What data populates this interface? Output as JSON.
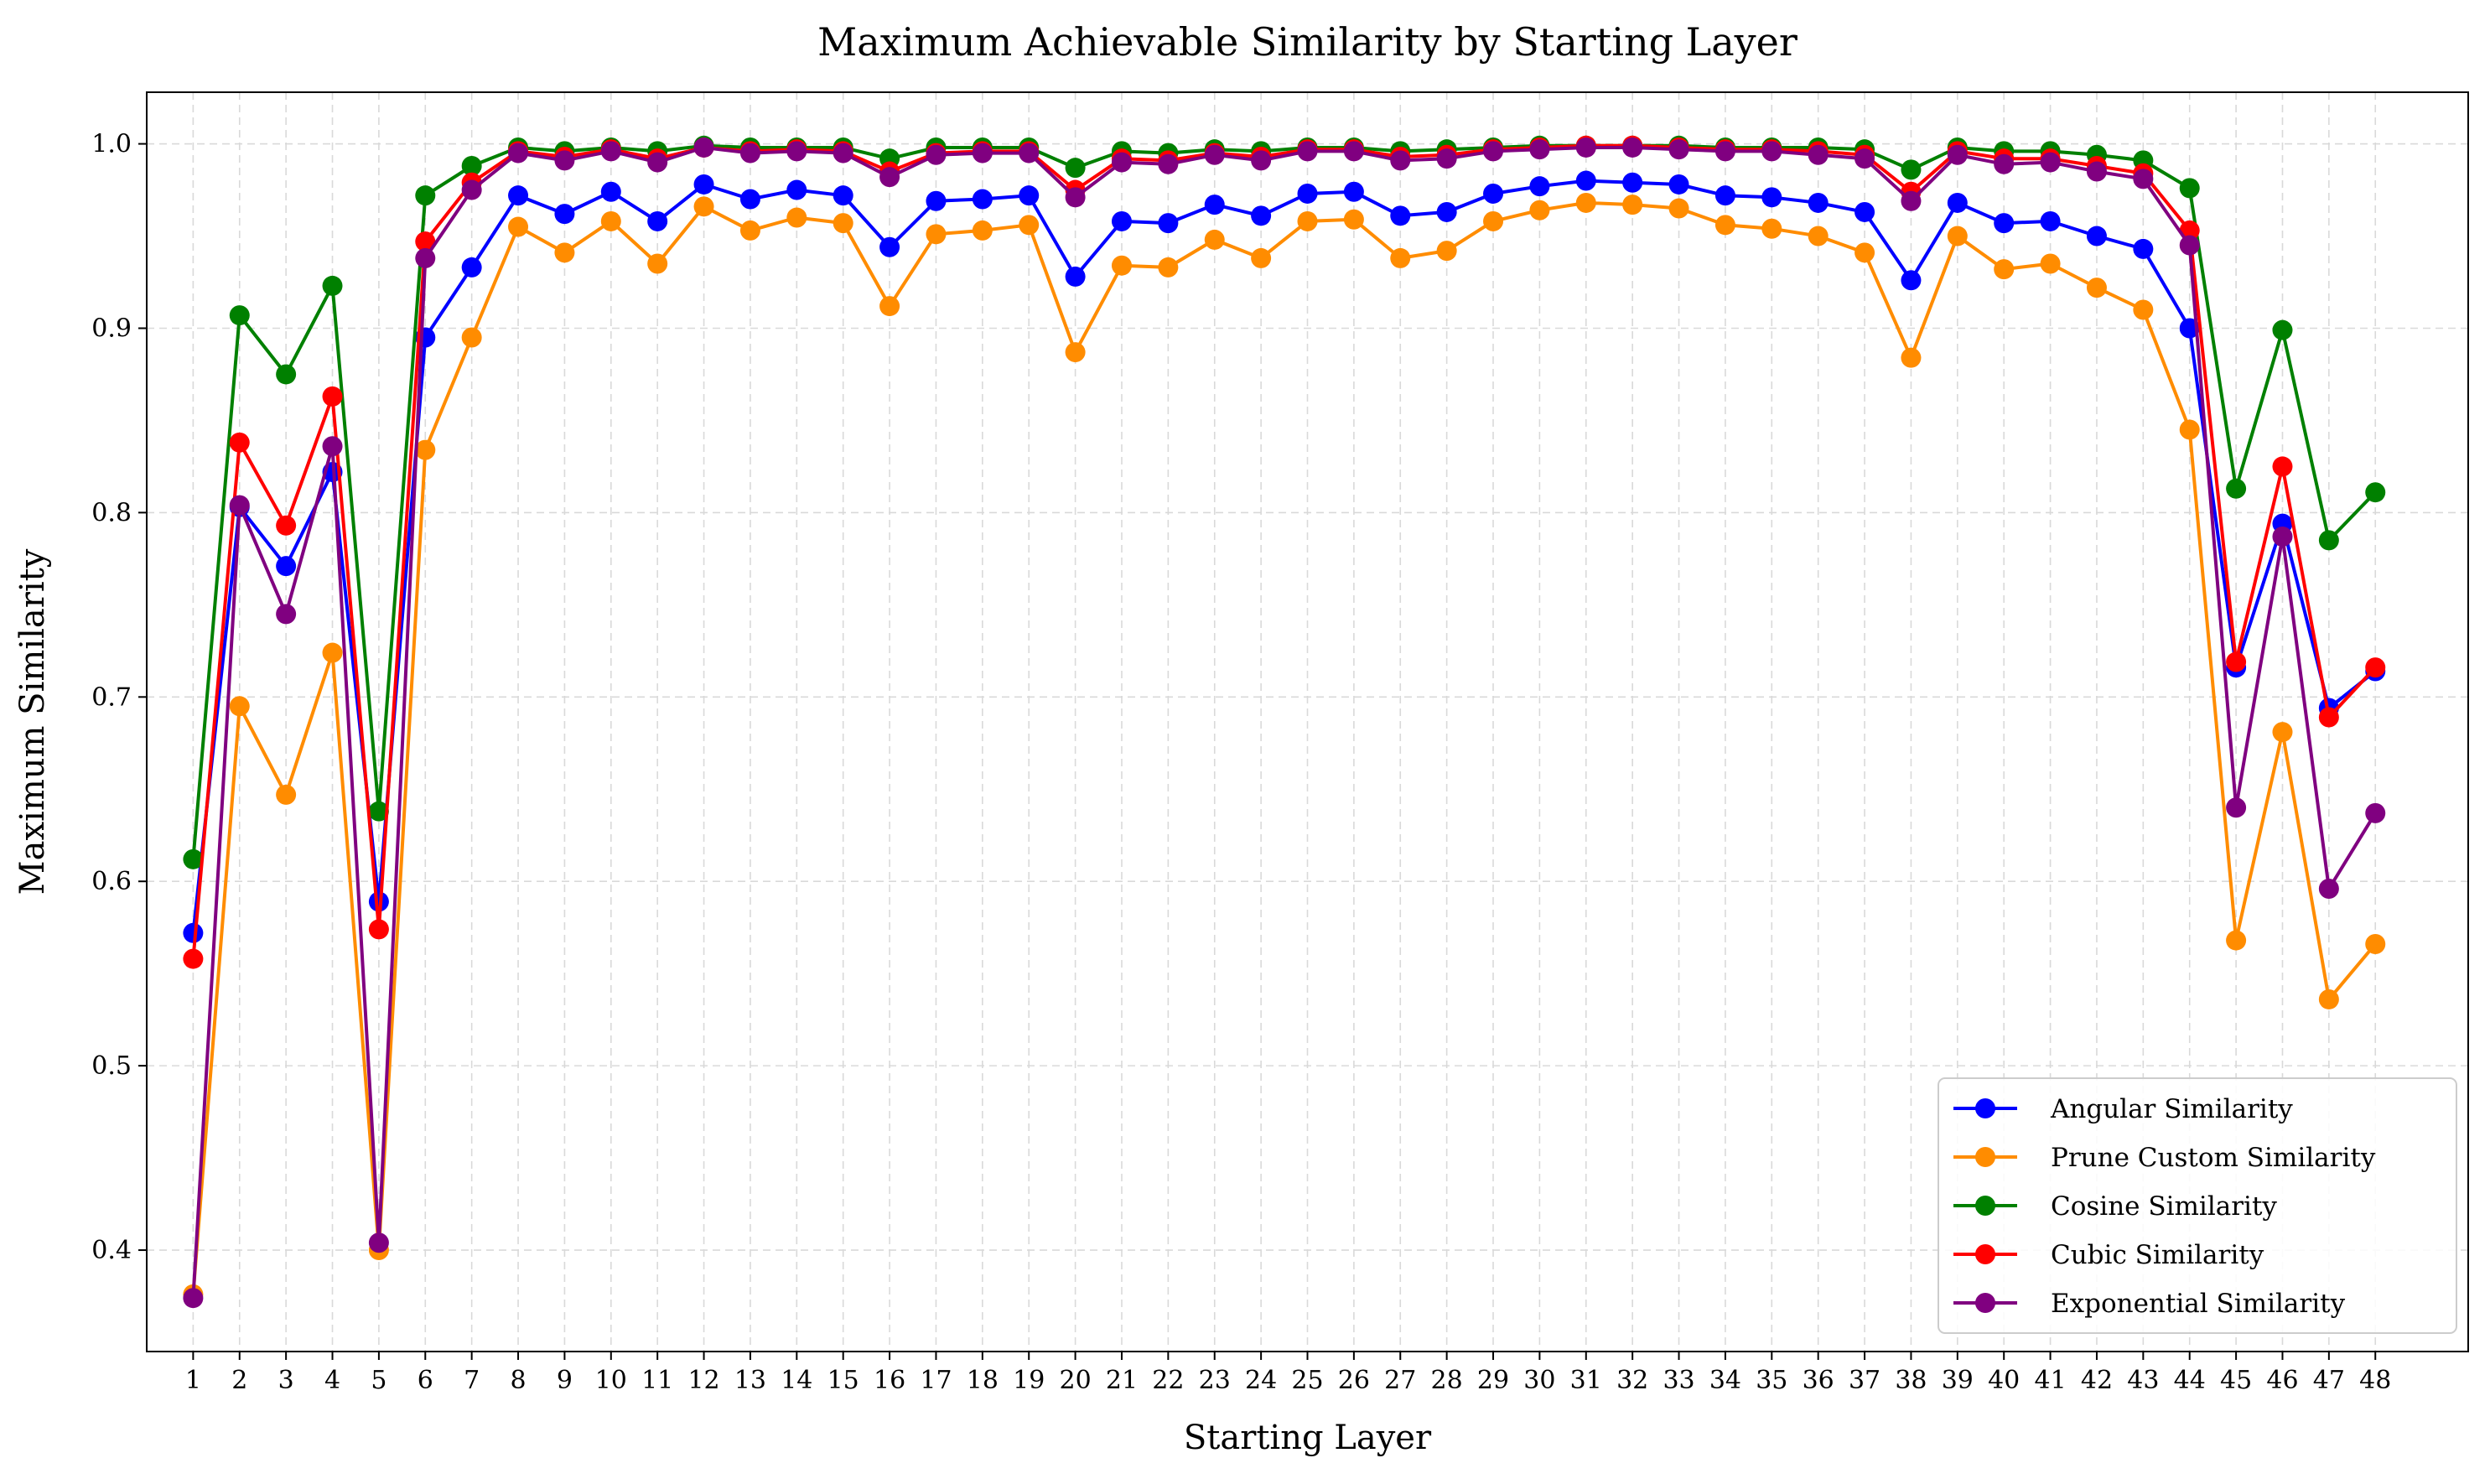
{
  "chart_data": {
    "type": "line",
    "title": "Maximum Achievable Similarity by Starting Layer",
    "xlabel": "Starting Layer",
    "ylabel": "Maximum Similarity",
    "x": [
      1,
      2,
      3,
      4,
      5,
      6,
      7,
      8,
      9,
      10,
      11,
      12,
      13,
      14,
      15,
      16,
      17,
      18,
      19,
      20,
      21,
      22,
      23,
      24,
      25,
      26,
      27,
      28,
      29,
      30,
      31,
      32,
      33,
      34,
      35,
      36,
      37,
      38,
      39,
      40,
      41,
      42,
      43,
      44,
      45,
      46,
      47,
      48
    ],
    "xlim": [
      0.0,
      50.0
    ],
    "ylim": [
      0.345,
      1.028
    ],
    "yticks": [
      0.4,
      0.5,
      0.6,
      0.7,
      0.8,
      0.9,
      1.0
    ],
    "ytick_labels": [
      "0.4",
      "0.5",
      "0.6",
      "0.7",
      "0.8",
      "0.9",
      "1.0"
    ],
    "grid": true,
    "legend_position": "bottom-right",
    "series": [
      {
        "name": "Angular Similarity",
        "color": "#0000ff",
        "values": [
          0.572,
          0.803,
          0.771,
          0.822,
          0.589,
          0.895,
          0.933,
          0.972,
          0.962,
          0.974,
          0.958,
          0.978,
          0.97,
          0.975,
          0.972,
          0.944,
          0.969,
          0.97,
          0.972,
          0.928,
          0.958,
          0.957,
          0.967,
          0.961,
          0.973,
          0.974,
          0.961,
          0.963,
          0.973,
          0.977,
          0.98,
          0.979,
          0.978,
          0.972,
          0.971,
          0.968,
          0.963,
          0.926,
          0.968,
          0.957,
          0.958,
          0.95,
          0.943,
          0.9,
          0.716,
          0.794,
          0.694,
          0.714
        ]
      },
      {
        "name": "Prune Custom Similarity",
        "color": "#ff8c00",
        "values": [
          0.376,
          0.695,
          0.647,
          0.724,
          0.4,
          0.834,
          0.895,
          0.955,
          0.941,
          0.958,
          0.935,
          0.966,
          0.953,
          0.96,
          0.957,
          0.912,
          0.951,
          0.953,
          0.956,
          0.887,
          0.934,
          0.933,
          0.948,
          0.938,
          0.958,
          0.959,
          0.938,
          0.942,
          0.958,
          0.964,
          0.968,
          0.967,
          0.965,
          0.956,
          0.954,
          0.95,
          0.941,
          0.884,
          0.95,
          0.932,
          0.935,
          0.922,
          0.91,
          0.845,
          0.568,
          0.681,
          0.536,
          0.566
        ]
      },
      {
        "name": "Cosine Similarity",
        "color": "#008000",
        "values": [
          0.612,
          0.907,
          0.875,
          0.923,
          0.638,
          0.972,
          0.988,
          0.998,
          0.996,
          0.998,
          0.996,
          0.999,
          0.998,
          0.998,
          0.998,
          0.992,
          0.998,
          0.998,
          0.998,
          0.987,
          0.996,
          0.995,
          0.997,
          0.996,
          0.998,
          0.998,
          0.996,
          0.997,
          0.998,
          0.999,
          0.999,
          0.999,
          0.999,
          0.998,
          0.998,
          0.998,
          0.997,
          0.986,
          0.998,
          0.996,
          0.996,
          0.994,
          0.991,
          0.976,
          0.813,
          0.899,
          0.785,
          0.811
        ]
      },
      {
        "name": "Cubic Similarity",
        "color": "#ff0000",
        "values": [
          0.558,
          0.838,
          0.793,
          0.863,
          0.574,
          0.947,
          0.979,
          0.996,
          0.993,
          0.997,
          0.992,
          0.998,
          0.996,
          0.997,
          0.996,
          0.985,
          0.995,
          0.996,
          0.996,
          0.975,
          0.992,
          0.991,
          0.995,
          0.993,
          0.997,
          0.997,
          0.993,
          0.994,
          0.997,
          0.998,
          0.999,
          0.999,
          0.998,
          0.997,
          0.997,
          0.996,
          0.994,
          0.974,
          0.996,
          0.992,
          0.992,
          0.988,
          0.984,
          0.953,
          0.719,
          0.825,
          0.689,
          0.716
        ]
      },
      {
        "name": "Exponential Similarity",
        "color": "#800080",
        "values": [
          0.374,
          0.804,
          0.745,
          0.836,
          0.404,
          0.938,
          0.975,
          0.995,
          0.991,
          0.996,
          0.99,
          0.998,
          0.995,
          0.996,
          0.995,
          0.982,
          0.994,
          0.995,
          0.995,
          0.971,
          0.99,
          0.989,
          0.994,
          0.991,
          0.996,
          0.996,
          0.991,
          0.992,
          0.996,
          0.997,
          0.998,
          0.998,
          0.997,
          0.996,
          0.996,
          0.994,
          0.992,
          0.969,
          0.994,
          0.989,
          0.99,
          0.985,
          0.981,
          0.945,
          0.64,
          0.787,
          0.596,
          0.637
        ]
      }
    ]
  }
}
